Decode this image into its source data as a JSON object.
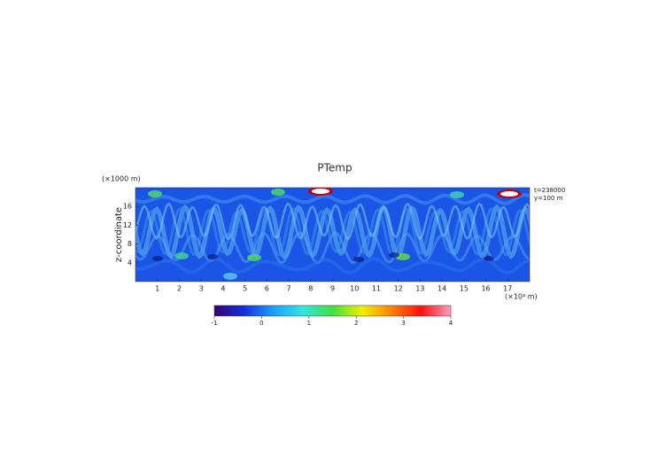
{
  "chart_data": {
    "type": "heatmap",
    "title": "PTemp",
    "x_unit_label": "(×10⁴ m)",
    "y_unit_label": "(×1000 m)",
    "y_label": "z-coordinate",
    "annotations": [
      "t=238000",
      "y=100 m"
    ],
    "xlim": [
      0,
      18
    ],
    "xticks": [
      1,
      2,
      3,
      4,
      5,
      6,
      7,
      8,
      9,
      10,
      11,
      12,
      13,
      14,
      15,
      16,
      17
    ],
    "ylim": [
      0,
      20
    ],
    "yticks": [
      4,
      8,
      12,
      16
    ],
    "clim": [
      -1,
      4
    ],
    "cticks": [
      -1,
      0,
      1,
      2,
      3,
      4
    ],
    "colorscale": [
      "#3a0070",
      "#1030e0",
      "#1aa0ff",
      "#30e8e0",
      "#40e040",
      "#f0f000",
      "#ff8000",
      "#ff1010",
      "#ffa0c0"
    ]
  }
}
